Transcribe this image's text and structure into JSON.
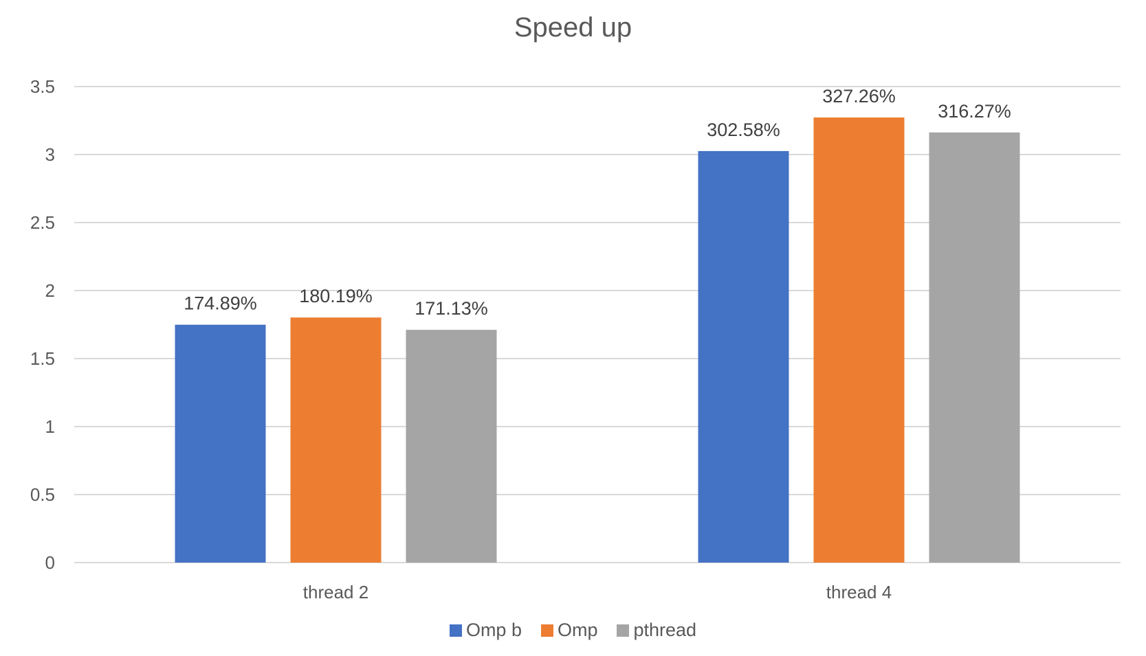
{
  "chart_data": {
    "type": "bar",
    "title": "Speed up",
    "categories": [
      "thread 2",
      "thread 4"
    ],
    "series": [
      {
        "name": "Omp b",
        "color": "#4472C4",
        "values": [
          1.7489,
          3.0258
        ],
        "labels": [
          "174.89%",
          "302.58%"
        ]
      },
      {
        "name": "Omp",
        "color": "#ED7D31",
        "values": [
          1.8019,
          3.2726
        ],
        "labels": [
          "180.19%",
          "327.26%"
        ]
      },
      {
        "name": "pthread",
        "color": "#A5A5A5",
        "values": [
          1.7113,
          3.1627
        ],
        "labels": [
          "171.13%",
          "316.27%"
        ]
      }
    ],
    "yticks": [
      "0",
      "0.5",
      "1",
      "1.5",
      "2",
      "2.5",
      "3",
      "3.5"
    ],
    "ylim": [
      0,
      3.5
    ],
    "grid": true,
    "legend_position": "bottom"
  }
}
